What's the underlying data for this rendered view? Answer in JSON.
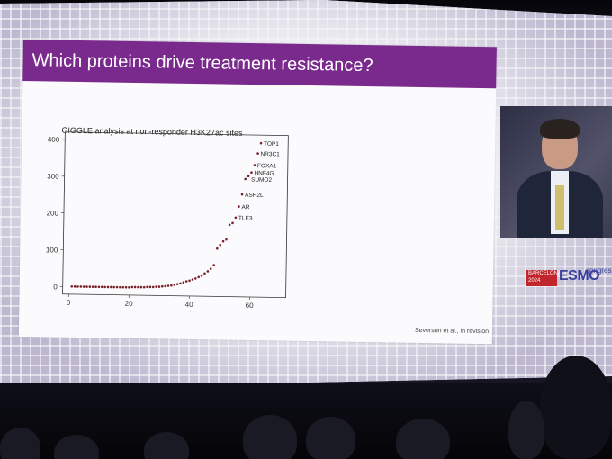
{
  "slide": {
    "title": "Which proteins drive treatment resistance?",
    "chart_title": "GIGGLE analysis at non-responder H3K27ac sites",
    "credit": "Severson et al., in revision"
  },
  "logo": {
    "city": "BARCELONA",
    "year": "2024",
    "brand": "ESMO",
    "event": "congress"
  },
  "chart_data": {
    "type": "scatter",
    "title": "GIGGLE analysis at non-responder H3K27ac sites",
    "xlabel": "",
    "ylabel": "",
    "xlim": [
      -2,
      72
    ],
    "ylim": [
      -20,
      420
    ],
    "xticks": [
      0,
      20,
      40,
      60
    ],
    "yticks": [
      0,
      100,
      200,
      300,
      400
    ],
    "grid": false,
    "series": [
      {
        "values": [
          [
            1,
            1
          ],
          [
            2,
            1
          ],
          [
            3,
            1
          ],
          [
            4,
            1
          ],
          [
            5,
            1
          ],
          [
            6,
            1
          ],
          [
            7,
            1
          ],
          [
            8,
            1
          ],
          [
            9,
            1
          ],
          [
            10,
            1
          ],
          [
            11,
            1
          ],
          [
            12,
            1
          ],
          [
            13,
            1
          ],
          [
            14,
            1
          ],
          [
            15,
            1
          ],
          [
            16,
            1
          ],
          [
            17,
            1
          ],
          [
            18,
            1
          ],
          [
            19,
            1
          ],
          [
            20,
            1
          ],
          [
            21,
            2
          ],
          [
            22,
            2
          ],
          [
            23,
            2
          ],
          [
            24,
            2
          ],
          [
            25,
            2
          ],
          [
            26,
            3
          ],
          [
            27,
            3
          ],
          [
            28,
            3
          ],
          [
            29,
            4
          ],
          [
            30,
            4
          ],
          [
            31,
            5
          ],
          [
            32,
            6
          ],
          [
            33,
            7
          ],
          [
            34,
            8
          ],
          [
            35,
            10
          ],
          [
            36,
            12
          ],
          [
            37,
            14
          ],
          [
            38,
            17
          ],
          [
            39,
            20
          ],
          [
            40,
            22
          ],
          [
            41,
            25
          ],
          [
            42,
            28
          ],
          [
            43,
            32
          ],
          [
            44,
            36
          ],
          [
            45,
            42
          ],
          [
            46,
            48
          ],
          [
            47,
            55
          ],
          [
            48,
            65
          ],
          [
            49,
            110
          ],
          [
            50,
            120
          ],
          [
            51,
            130
          ],
          [
            52,
            135
          ],
          [
            53,
            175
          ],
          [
            54,
            180
          ],
          [
            55,
            195
          ],
          [
            56,
            225
          ],
          [
            57,
            258
          ],
          [
            58,
            300
          ],
          [
            59,
            308
          ],
          [
            60,
            318
          ],
          [
            61,
            338
          ],
          [
            62,
            370
          ],
          [
            63,
            398
          ]
        ]
      }
    ],
    "annotations": [
      {
        "label": "TOP1",
        "x": 63,
        "y": 398
      },
      {
        "label": "NR3C1",
        "x": 62,
        "y": 370
      },
      {
        "label": "FOXA1",
        "x": 61,
        "y": 338
      },
      {
        "label": "HNF4G",
        "x": 60,
        "y": 318
      },
      {
        "label": "SUMO2",
        "x": 59,
        "y": 300
      },
      {
        "label": "ASH2L",
        "x": 57,
        "y": 258
      },
      {
        "label": "AR",
        "x": 56,
        "y": 225
      },
      {
        "label": "TLE3",
        "x": 55,
        "y": 195
      }
    ],
    "colors": {
      "points": "#7a1f2a",
      "axes": "#333333"
    }
  }
}
